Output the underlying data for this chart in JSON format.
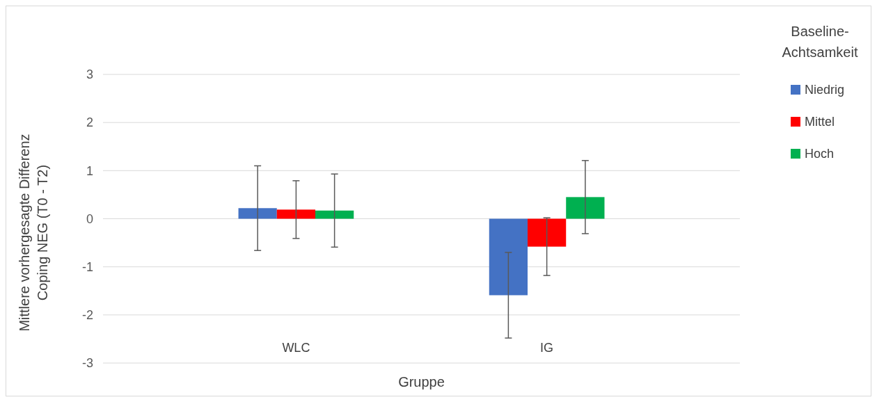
{
  "chart_data": {
    "type": "bar",
    "xlabel": "Gruppe",
    "ylabel": "Mittlere vorhergesagte Differenz Coping NEG (T0 - T2)",
    "legend_title": "Baseline-Achtsamkeit",
    "categories": [
      "WLC",
      "IG"
    ],
    "series": [
      {
        "name": "Niedrig",
        "color": "#4472c4",
        "values": [
          0.22,
          -1.59
        ],
        "errors": [
          0.88,
          0.89
        ]
      },
      {
        "name": "Mittel",
        "color": "#ff0000",
        "values": [
          0.19,
          -0.58
        ],
        "errors": [
          0.6,
          0.6
        ]
      },
      {
        "name": "Hoch",
        "color": "#00b050",
        "values": [
          0.17,
          0.45
        ],
        "errors": [
          0.76,
          0.76
        ]
      }
    ],
    "ylim": [
      -3,
      3
    ],
    "yticks": [
      -3,
      -2,
      -1,
      0,
      1,
      2,
      3
    ],
    "grid": "y",
    "legend": "top right"
  }
}
